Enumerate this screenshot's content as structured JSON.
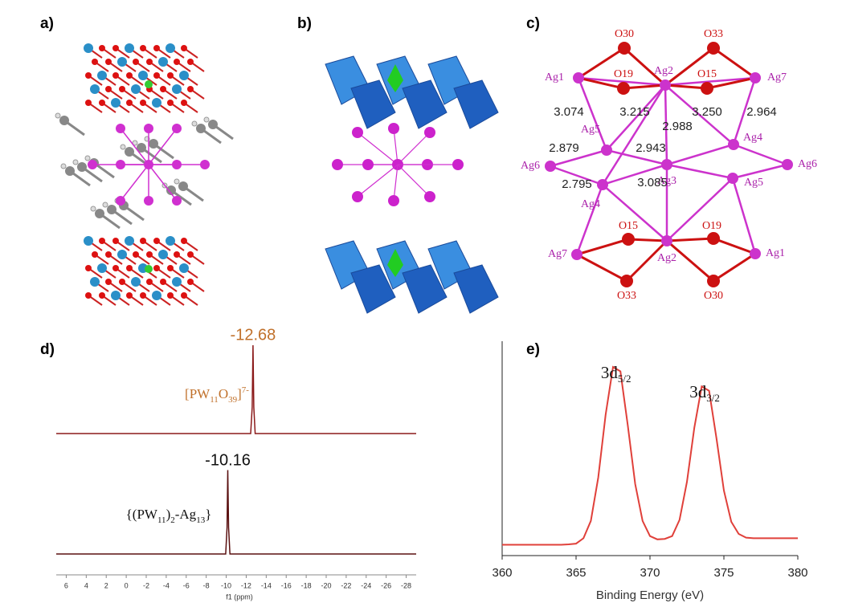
{
  "panels": [
    "a)",
    "b)",
    "c)",
    "d)",
    "e)"
  ],
  "structure": {
    "nodes": [
      "O30",
      "O33",
      "Ag1",
      "O19",
      "Ag2",
      "O15",
      "Ag7",
      "Ag5",
      "Ag4",
      "Ag6",
      "Ag3",
      "Ag6",
      "Ag5",
      "Ag4",
      "O15",
      "Ag2",
      "O19",
      "Ag7",
      "Ag1",
      "O33",
      "O30"
    ],
    "distances": [
      "3.074",
      "3.215",
      "2.988",
      "3.250",
      "2.964",
      "2.879",
      "2.943",
      "2.795",
      "3.085"
    ]
  },
  "chart_data": [
    {
      "type": "line",
      "xlabel": "f1 (ppm)",
      "xlim": [
        7,
        -29
      ],
      "ylim": [
        0,
        1
      ],
      "xticks": [
        6,
        4,
        2,
        0,
        -2,
        -4,
        -6,
        -8,
        -10,
        -12,
        -14,
        -16,
        -18,
        -20,
        -22,
        -24,
        -26,
        -28
      ],
      "series": [
        {
          "name": [
            "[PW",
            "11",
            "O",
            "39",
            "]",
            "7-"
          ],
          "color": "#8b1a1a",
          "peak": -12.68,
          "peak_color": "#c0702a",
          "x": [
            7,
            -12.45,
            -12.6,
            -12.68,
            -12.76,
            -12.9,
            -29
          ],
          "values": [
            0,
            0,
            0.3,
            1,
            0.3,
            0,
            0
          ]
        },
        {
          "name": [
            "{(PW",
            "11",
            ")",
            "2",
            "-Ag",
            "13",
            "}"
          ],
          "color": "#5a1010",
          "peak": -10.16,
          "peak_color": "#111111",
          "x": [
            7,
            -9.95,
            -10.08,
            -10.16,
            -10.24,
            -10.37,
            -29
          ],
          "values": [
            0,
            0,
            0.3,
            0.95,
            0.3,
            0,
            0
          ]
        }
      ]
    },
    {
      "type": "line",
      "xlabel": "Binding Energy (eV)",
      "xlim": [
        360,
        380
      ],
      "ylim": [
        0,
        1
      ],
      "xticks": [
        360,
        365,
        370,
        375,
        380
      ],
      "peak_labels": [
        {
          "text": [
            "3d",
            "5/2"
          ],
          "x": 367.7
        },
        {
          "text": [
            "3d",
            "3/2"
          ],
          "x": 373.7
        }
      ],
      "series": [
        {
          "color": "#e0403a",
          "x": [
            360,
            361,
            362,
            363,
            364,
            364.5,
            365,
            365.5,
            366,
            366.5,
            367,
            367.5,
            368,
            368.5,
            369,
            369.5,
            370,
            370.5,
            371,
            371.5,
            372,
            372.5,
            373,
            373.5,
            374,
            374.5,
            375,
            375.5,
            376,
            376.5,
            377,
            378,
            379,
            380
          ],
          "values": [
            0.05,
            0.05,
            0.05,
            0.05,
            0.05,
            0.052,
            0.055,
            0.08,
            0.16,
            0.36,
            0.65,
            0.87,
            0.85,
            0.6,
            0.33,
            0.16,
            0.09,
            0.075,
            0.077,
            0.09,
            0.165,
            0.34,
            0.59,
            0.78,
            0.76,
            0.54,
            0.3,
            0.156,
            0.1,
            0.083,
            0.08,
            0.08,
            0.08,
            0.08
          ]
        }
      ]
    }
  ]
}
